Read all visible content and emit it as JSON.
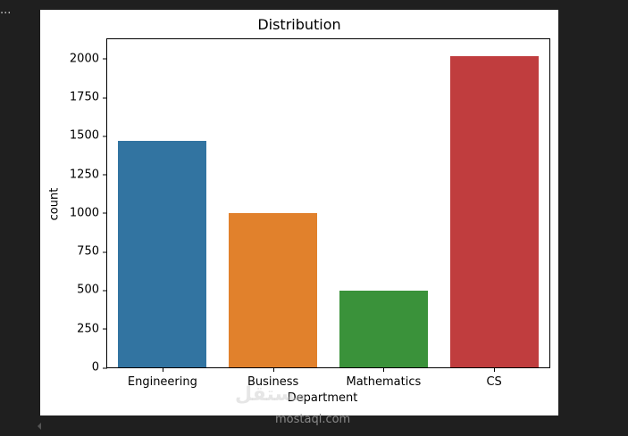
{
  "output_cell": {
    "ellipsis": "..."
  },
  "watermark": {
    "arabic": "مستقل",
    "text": "mostaql.com"
  },
  "chart_data": {
    "type": "bar",
    "title": "Distribution",
    "xlabel": "Department",
    "ylabel": "count",
    "categories": [
      "Engineering",
      "Business",
      "Mathematics",
      "CS"
    ],
    "values": [
      1470,
      1000,
      500,
      2020
    ],
    "colors": [
      "#3274a1",
      "#e1812c",
      "#3a923a",
      "#c03d3e"
    ],
    "ylim": [
      0,
      2127
    ],
    "yticks": [
      0,
      250,
      500,
      750,
      1000,
      1250,
      1500,
      1750,
      2000
    ],
    "grid": false,
    "legend": null
  }
}
